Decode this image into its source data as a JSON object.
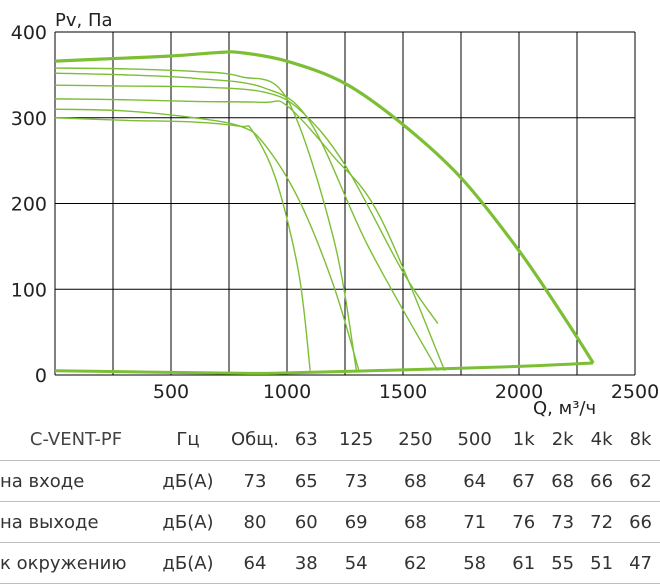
{
  "chart_data": {
    "type": "line",
    "ylabel": "Pv, Па",
    "xlabel": "Q, м³/ч",
    "xlim": [
      0,
      2500
    ],
    "ylim": [
      0,
      400
    ],
    "x_ticks": [
      "500",
      "1000",
      "1500",
      "2000",
      "2500"
    ],
    "y_ticks": [
      "0",
      "100",
      "200",
      "300",
      "400"
    ],
    "grid": true,
    "colors": {
      "curve": "#7cbf35",
      "grid": "#000000"
    },
    "max_curve": [
      [
        0,
        366
      ],
      [
        250,
        369
      ],
      [
        500,
        372
      ],
      [
        700,
        376
      ],
      [
        800,
        376
      ],
      [
        1000,
        366
      ],
      [
        1250,
        340
      ],
      [
        1500,
        292
      ],
      [
        1750,
        230
      ],
      [
        2000,
        145
      ],
      [
        2200,
        65
      ],
      [
        2320,
        14
      ]
    ],
    "min_line": [
      [
        0,
        5
      ],
      [
        800,
        2
      ],
      [
        1000,
        2.5
      ],
      [
        1500,
        6
      ],
      [
        2000,
        10
      ],
      [
        2320,
        14
      ]
    ],
    "curves": [
      {
        "x": [
          0,
          300,
          600,
          800,
          1000,
          1200,
          1300
        ],
        "y": [
          358,
          357,
          354,
          348,
          322,
          160,
          4
        ]
      },
      {
        "x": [
          0,
          300,
          600,
          900,
          1100,
          1350,
          1650
        ],
        "y": [
          352,
          350,
          346,
          335,
          295,
          150,
          5
        ]
      },
      {
        "x": [
          0,
          300,
          600,
          900,
          1060,
          1250,
          1500,
          1650
        ],
        "y": [
          338,
          337,
          336,
          330,
          308,
          245,
          120,
          60
        ]
      },
      {
        "x": [
          0,
          300,
          600,
          900,
          1000,
          1200,
          1400,
          1680
        ],
        "y": [
          322,
          321,
          319,
          318,
          314,
          255,
          185,
          5
        ]
      },
      {
        "x": [
          0,
          300,
          600,
          800,
          900,
          1050,
          1200,
          1310
        ],
        "y": [
          310,
          308,
          300,
          290,
          270,
          205,
          105,
          5
        ]
      },
      {
        "x": [
          0,
          300,
          600,
          800,
          850,
          950,
          1050,
          1100
        ],
        "y": [
          300,
          297,
          295,
          290,
          285,
          230,
          120,
          5
        ]
      }
    ]
  },
  "table": {
    "header": [
      "C-VENT-PF",
      "Гц",
      "Общ.",
      "63",
      "125",
      "250",
      "500",
      "1k",
      "2k",
      "4k",
      "8k"
    ],
    "rows": [
      {
        "label": "на входе",
        "unit": "дБ(А)",
        "values": [
          "73",
          "65",
          "73",
          "68",
          "64",
          "67",
          "68",
          "66",
          "62"
        ]
      },
      {
        "label": "на выходе",
        "unit": "дБ(А)",
        "values": [
          "80",
          "60",
          "69",
          "68",
          "71",
          "76",
          "73",
          "72",
          "66"
        ]
      },
      {
        "label": "к окружению",
        "unit": "дБ(А)",
        "values": [
          "64",
          "38",
          "54",
          "62",
          "58",
          "61",
          "55",
          "51",
          "47"
        ]
      }
    ]
  }
}
